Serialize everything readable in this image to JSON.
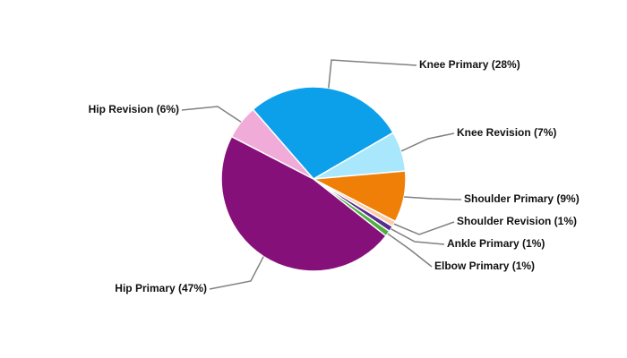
{
  "chart_data": {
    "type": "pie",
    "categories": [
      "Knee Primary (28%)",
      "Knee Revision (7%)",
      "Shoulder Primary (9%)",
      "Shoulder Revision (1%)",
      "Ankle Primary (1%)",
      "Elbow Primary (1%)",
      "Hip Primary (47%)",
      "Hip Revision (6%)"
    ],
    "values": [
      28,
      7,
      9,
      1,
      1,
      1,
      47,
      6
    ],
    "colors": [
      "#0ca0ea",
      "#a9e7fc",
      "#f07f07",
      "#fbcda8",
      "#5b2c8f",
      "#4caf3f",
      "#86107a",
      "#f0abd9"
    ]
  }
}
